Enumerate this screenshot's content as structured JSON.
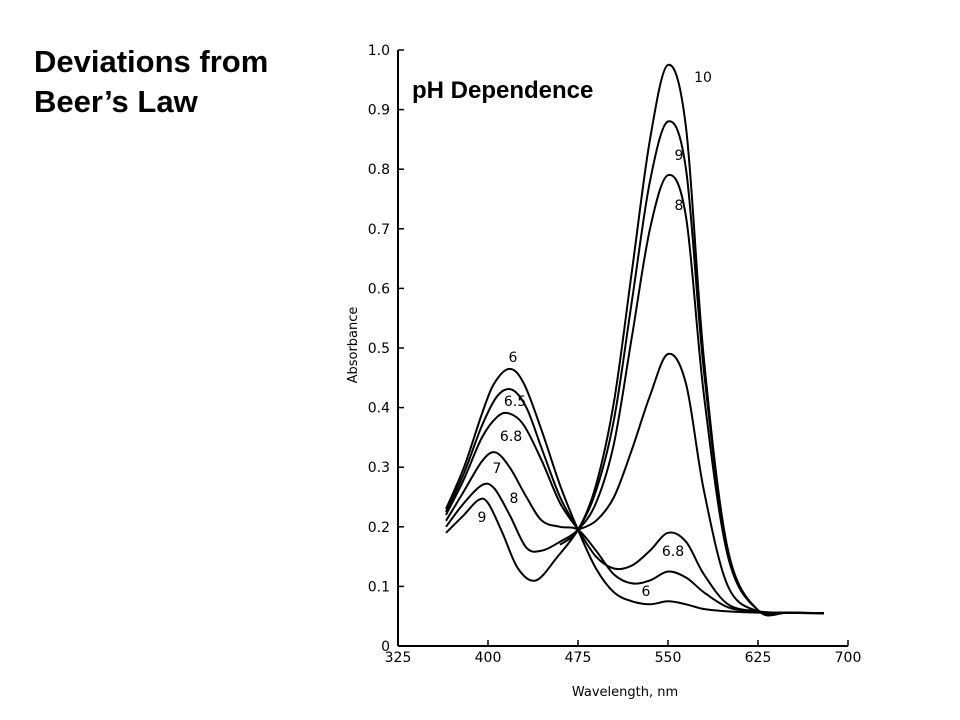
{
  "slide": {
    "title_line1": "Deviations from",
    "title_line2": "Beer’s Law"
  },
  "chart_data": {
    "type": "line",
    "title": "pH Dependence",
    "xlabel": "Wavelength,  nm",
    "ylabel": "Absorbance",
    "xlim": [
      325,
      700
    ],
    "ylim": [
      0,
      1.0
    ],
    "x_ticks": [
      "325",
      "400",
      "475",
      "550",
      "625",
      "700"
    ],
    "y_ticks": [
      "0",
      "0.1",
      "0.2",
      "0.3",
      "0.4",
      "0.5",
      "0.6",
      "0.7",
      "0.8",
      "0.9",
      "1.0"
    ],
    "grid": false,
    "series": [
      {
        "name": "6",
        "x": [
          365,
          380,
          395,
          405,
          418,
          430,
          445,
          460,
          475,
          490,
          505,
          520,
          535,
          550,
          565,
          580,
          600,
          625,
          650,
          680
        ],
        "y": [
          0.23,
          0.3,
          0.39,
          0.44,
          0.465,
          0.44,
          0.36,
          0.27,
          0.195,
          0.13,
          0.09,
          0.075,
          0.07,
          0.075,
          0.07,
          0.062,
          0.058,
          0.056,
          0.056,
          0.055
        ]
      },
      {
        "name": "6.5",
        "x": [
          365,
          380,
          395,
          408,
          420,
          432,
          445,
          460,
          475
        ],
        "y": [
          0.225,
          0.29,
          0.37,
          0.42,
          0.43,
          0.4,
          0.33,
          0.25,
          0.195
        ]
      },
      {
        "name": "6.8",
        "x": [
          365,
          380,
          395,
          408,
          418,
          430,
          445,
          460,
          475,
          490,
          505,
          520,
          535,
          550,
          565,
          580,
          600,
          625,
          650,
          680
        ],
        "y": [
          0.22,
          0.28,
          0.35,
          0.385,
          0.39,
          0.37,
          0.31,
          0.24,
          0.195,
          0.15,
          0.13,
          0.135,
          0.16,
          0.19,
          0.175,
          0.12,
          0.07,
          0.058,
          0.056,
          0.055
        ]
      },
      {
        "name": "7",
        "x": [
          365,
          380,
          395,
          406,
          418,
          432,
          445,
          460,
          475,
          490,
          505,
          520,
          535,
          550,
          565,
          580,
          600,
          625,
          650,
          680
        ],
        "y": [
          0.21,
          0.26,
          0.31,
          0.325,
          0.3,
          0.25,
          0.21,
          0.2,
          0.195,
          0.16,
          0.12,
          0.105,
          0.11,
          0.125,
          0.115,
          0.09,
          0.065,
          0.057,
          0.056,
          0.055
        ]
      },
      {
        "name": "8",
        "x": [
          365,
          380,
          395,
          405,
          418,
          432,
          445,
          460,
          475,
          490,
          505,
          520,
          535,
          550,
          565,
          580,
          600,
          625,
          650,
          680
        ],
        "y": [
          0.2,
          0.24,
          0.27,
          0.265,
          0.22,
          0.165,
          0.16,
          0.175,
          0.195,
          0.24,
          0.34,
          0.52,
          0.7,
          0.79,
          0.72,
          0.42,
          0.15,
          0.06,
          0.056,
          0.055
        ]
      },
      {
        "name": "9",
        "x": [
          365,
          380,
          392,
          400,
          412,
          425,
          440,
          458,
          475,
          490,
          505,
          520,
          535,
          550,
          565,
          580,
          600,
          625,
          650,
          680
        ],
        "y": [
          0.19,
          0.22,
          0.245,
          0.24,
          0.19,
          0.13,
          0.11,
          0.15,
          0.195,
          0.26,
          0.38,
          0.58,
          0.78,
          0.88,
          0.8,
          0.46,
          0.16,
          0.06,
          0.056,
          0.055
        ]
      },
      {
        "name": "10",
        "x": [
          460,
          475,
          490,
          505,
          520,
          535,
          550,
          565,
          580,
          600,
          625,
          650,
          680
        ],
        "y": [
          0.17,
          0.195,
          0.27,
          0.41,
          0.63,
          0.85,
          0.975,
          0.87,
          0.48,
          0.16,
          0.06,
          0.056,
          0.055
        ]
      },
      {
        "name": "",
        "x": [
          475,
          490,
          505,
          520,
          535,
          550,
          565,
          580,
          600,
          625,
          650,
          680
        ],
        "y": [
          0.195,
          0.21,
          0.25,
          0.33,
          0.42,
          0.49,
          0.44,
          0.26,
          0.1,
          0.058,
          0.056,
          0.055
        ]
      }
    ],
    "labels_left_peak": [
      "6",
      "6.5",
      "6.8",
      "7",
      "8",
      "9"
    ],
    "labels_right_peak": [
      "10",
      "9",
      "8"
    ],
    "labels_low_curves": [
      "6.8",
      "6"
    ]
  }
}
